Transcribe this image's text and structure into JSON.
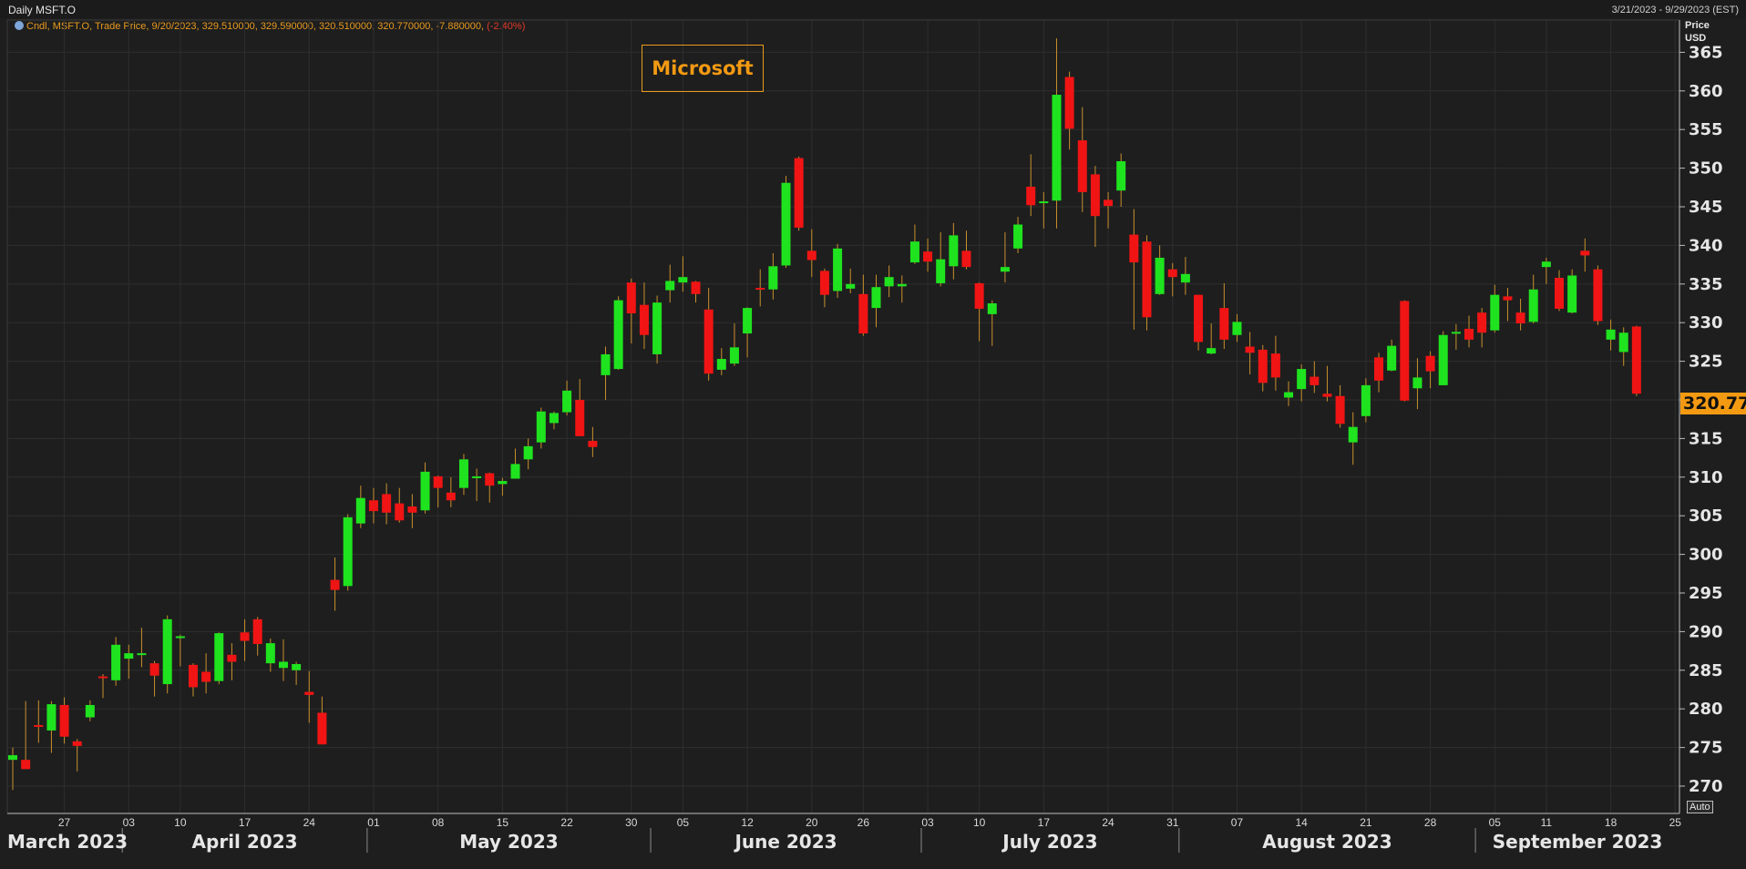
{
  "window": {
    "title": "Daily MSFT.O",
    "date_range": "3/21/2023 - 9/29/2023 (EST)"
  },
  "legend": {
    "text": "Cndl, MSFT.O, Trade Price, 9/20/2023, 329.510000, 329.590000, 320.510000, 320.770000, -7.880000,",
    "change_pct": "(-2.40%)"
  },
  "axis": {
    "price_label": "Price",
    "currency": "USD",
    "auto_label": "Auto",
    "last_price": "320.770"
  },
  "annotation": {
    "label": "Microsoft"
  },
  "colors": {
    "background": "#1e1e1e",
    "up": "#1fe31f",
    "down": "#f01414",
    "grid": "#2e2e2e",
    "wick": "#c8912c",
    "accent": "#f39a12"
  },
  "chart_data": {
    "type": "candlestick",
    "title": "Daily MSFT.O",
    "ylabel": "Price USD",
    "ylim": [
      267,
      367
    ],
    "yticks": [
      270,
      275,
      280,
      285,
      290,
      295,
      300,
      305,
      310,
      315,
      320,
      325,
      330,
      335,
      340,
      345,
      350,
      355,
      360,
      365
    ],
    "x_day_ticks": [
      "27",
      "03",
      "10",
      "17",
      "24",
      "01",
      "08",
      "15",
      "22",
      "30",
      "05",
      "12",
      "20",
      "26",
      "03",
      "10",
      "17",
      "24",
      "31",
      "07",
      "14",
      "21",
      "28",
      "05",
      "11",
      "18",
      "25"
    ],
    "x_month_labels": [
      "March 2023",
      "April 2023",
      "May 2023",
      "June 2023",
      "July 2023",
      "August 2023",
      "September 2023"
    ],
    "grid": true,
    "candles": [
      {
        "date": "2023-03-21",
        "o": 273.4,
        "h": 275.0,
        "l": 269.5,
        "c": 274.0
      },
      {
        "date": "2023-03-22",
        "o": 273.4,
        "h": 281.0,
        "l": 272.2,
        "c": 272.2
      },
      {
        "date": "2023-03-23",
        "o": 277.9,
        "h": 281.1,
        "l": 275.6,
        "c": 277.7
      },
      {
        "date": "2023-03-24",
        "o": 277.2,
        "h": 281.0,
        "l": 274.3,
        "c": 280.6
      },
      {
        "date": "2023-03-27",
        "o": 280.5,
        "h": 281.5,
        "l": 275.5,
        "c": 276.4
      },
      {
        "date": "2023-03-28",
        "o": 275.8,
        "h": 276.1,
        "l": 271.9,
        "c": 275.2
      },
      {
        "date": "2023-03-29",
        "o": 278.9,
        "h": 281.1,
        "l": 278.4,
        "c": 280.5
      },
      {
        "date": "2023-03-30",
        "o": 284.2,
        "h": 284.5,
        "l": 281.4,
        "c": 284.1
      },
      {
        "date": "2023-03-31",
        "o": 283.7,
        "h": 289.3,
        "l": 283.0,
        "c": 288.3
      },
      {
        "date": "2023-04-03",
        "o": 286.5,
        "h": 288.3,
        "l": 283.9,
        "c": 287.2
      },
      {
        "date": "2023-04-04",
        "o": 287.2,
        "h": 290.5,
        "l": 285.4,
        "c": 287.2
      },
      {
        "date": "2023-04-05",
        "o": 285.9,
        "h": 286.2,
        "l": 281.6,
        "c": 284.3
      },
      {
        "date": "2023-04-06",
        "o": 283.2,
        "h": 292.1,
        "l": 282.0,
        "c": 291.6
      },
      {
        "date": "2023-04-10",
        "o": 289.2,
        "h": 289.6,
        "l": 285.5,
        "c": 289.4
      },
      {
        "date": "2023-04-11",
        "o": 285.7,
        "h": 285.9,
        "l": 281.6,
        "c": 282.8
      },
      {
        "date": "2023-04-12",
        "o": 284.8,
        "h": 287.2,
        "l": 282.0,
        "c": 283.5
      },
      {
        "date": "2023-04-13",
        "o": 283.6,
        "h": 289.9,
        "l": 283.2,
        "c": 289.8
      },
      {
        "date": "2023-04-14",
        "o": 287.0,
        "h": 288.5,
        "l": 283.7,
        "c": 286.1
      },
      {
        "date": "2023-04-17",
        "o": 289.9,
        "h": 291.6,
        "l": 286.2,
        "c": 288.8
      },
      {
        "date": "2023-04-18",
        "o": 291.6,
        "h": 291.9,
        "l": 286.9,
        "c": 288.4
      },
      {
        "date": "2023-04-19",
        "o": 285.9,
        "h": 289.1,
        "l": 284.8,
        "c": 288.5
      },
      {
        "date": "2023-04-20",
        "o": 285.3,
        "h": 289.0,
        "l": 283.6,
        "c": 286.1
      },
      {
        "date": "2023-04-21",
        "o": 285.0,
        "h": 286.1,
        "l": 283.1,
        "c": 285.8
      },
      {
        "date": "2023-04-24",
        "o": 282.2,
        "h": 284.9,
        "l": 278.2,
        "c": 281.8
      },
      {
        "date": "2023-04-25",
        "o": 279.5,
        "h": 281.6,
        "l": 275.4,
        "c": 275.4
      },
      {
        "date": "2023-04-26",
        "o": 296.7,
        "h": 299.6,
        "l": 292.7,
        "c": 295.4
      },
      {
        "date": "2023-04-27",
        "o": 295.9,
        "h": 305.2,
        "l": 295.3,
        "c": 304.8
      },
      {
        "date": "2023-04-28",
        "o": 304.0,
        "h": 308.9,
        "l": 303.4,
        "c": 307.3
      },
      {
        "date": "2023-05-01",
        "o": 307.0,
        "h": 308.6,
        "l": 304.0,
        "c": 305.6
      },
      {
        "date": "2023-05-02",
        "o": 307.8,
        "h": 309.2,
        "l": 303.9,
        "c": 305.4
      },
      {
        "date": "2023-05-03",
        "o": 306.6,
        "h": 308.6,
        "l": 304.1,
        "c": 304.4
      },
      {
        "date": "2023-05-04",
        "o": 306.2,
        "h": 307.8,
        "l": 303.4,
        "c": 305.4
      },
      {
        "date": "2023-05-05",
        "o": 305.7,
        "h": 311.9,
        "l": 305.3,
        "c": 310.7
      },
      {
        "date": "2023-05-08",
        "o": 310.1,
        "h": 310.2,
        "l": 306.1,
        "c": 308.6
      },
      {
        "date": "2023-05-09",
        "o": 308.0,
        "h": 310.0,
        "l": 306.1,
        "c": 307.0
      },
      {
        "date": "2023-05-10",
        "o": 308.6,
        "h": 313.0,
        "l": 307.7,
        "c": 312.3
      },
      {
        "date": "2023-05-11",
        "o": 310.1,
        "h": 311.1,
        "l": 306.9,
        "c": 310.1
      },
      {
        "date": "2023-05-12",
        "o": 310.5,
        "h": 310.6,
        "l": 306.7,
        "c": 308.9
      },
      {
        "date": "2023-05-15",
        "o": 309.1,
        "h": 309.9,
        "l": 307.6,
        "c": 309.5
      },
      {
        "date": "2023-05-16",
        "o": 309.8,
        "h": 313.7,
        "l": 309.8,
        "c": 311.7
      },
      {
        "date": "2023-05-17",
        "o": 312.3,
        "h": 315.0,
        "l": 311.0,
        "c": 314.0
      },
      {
        "date": "2023-05-18",
        "o": 314.5,
        "h": 319.0,
        "l": 313.7,
        "c": 318.5
      },
      {
        "date": "2023-05-19",
        "o": 317.0,
        "h": 318.5,
        "l": 316.2,
        "c": 318.3
      },
      {
        "date": "2023-05-22",
        "o": 318.4,
        "h": 322.5,
        "l": 318.0,
        "c": 321.2
      },
      {
        "date": "2023-05-23",
        "o": 320.0,
        "h": 322.7,
        "l": 315.3,
        "c": 315.3
      },
      {
        "date": "2023-05-24",
        "o": 314.7,
        "h": 316.5,
        "l": 312.6,
        "c": 313.9
      },
      {
        "date": "2023-05-25",
        "o": 323.2,
        "h": 326.9,
        "l": 320.0,
        "c": 325.9
      },
      {
        "date": "2023-05-26",
        "o": 324.0,
        "h": 333.4,
        "l": 323.9,
        "c": 332.9
      },
      {
        "date": "2023-05-30",
        "o": 335.2,
        "h": 335.7,
        "l": 327.3,
        "c": 331.2
      },
      {
        "date": "2023-05-31",
        "o": 332.3,
        "h": 335.2,
        "l": 326.6,
        "c": 328.4
      },
      {
        "date": "2023-06-01",
        "o": 325.9,
        "h": 333.5,
        "l": 324.7,
        "c": 332.6
      },
      {
        "date": "2023-06-02",
        "o": 334.2,
        "h": 337.5,
        "l": 332.6,
        "c": 335.4
      },
      {
        "date": "2023-06-05",
        "o": 335.2,
        "h": 338.6,
        "l": 334.0,
        "c": 335.9
      },
      {
        "date": "2023-06-06",
        "o": 335.3,
        "h": 335.4,
        "l": 332.6,
        "c": 333.7
      },
      {
        "date": "2023-06-07",
        "o": 331.7,
        "h": 334.5,
        "l": 322.5,
        "c": 323.4
      },
      {
        "date": "2023-06-08",
        "o": 323.9,
        "h": 326.7,
        "l": 323.2,
        "c": 325.3
      },
      {
        "date": "2023-06-09",
        "o": 324.7,
        "h": 329.9,
        "l": 324.4,
        "c": 326.8
      },
      {
        "date": "2023-06-12",
        "o": 328.6,
        "h": 332.0,
        "l": 325.5,
        "c": 331.9
      },
      {
        "date": "2023-06-13",
        "o": 334.5,
        "h": 336.9,
        "l": 332.1,
        "c": 334.3
      },
      {
        "date": "2023-06-14",
        "o": 334.3,
        "h": 339.0,
        "l": 333.0,
        "c": 337.3
      },
      {
        "date": "2023-06-15",
        "o": 337.4,
        "h": 349.0,
        "l": 337.1,
        "c": 348.1
      },
      {
        "date": "2023-06-16",
        "o": 351.3,
        "h": 351.5,
        "l": 341.9,
        "c": 342.3
      },
      {
        "date": "2023-06-20",
        "o": 339.3,
        "h": 342.1,
        "l": 335.9,
        "c": 338.1
      },
      {
        "date": "2023-06-21",
        "o": 336.7,
        "h": 337.0,
        "l": 332.0,
        "c": 333.6
      },
      {
        "date": "2023-06-22",
        "o": 334.1,
        "h": 340.2,
        "l": 333.2,
        "c": 339.6
      },
      {
        "date": "2023-06-23",
        "o": 334.4,
        "h": 337.0,
        "l": 333.8,
        "c": 335.0
      },
      {
        "date": "2023-06-26",
        "o": 333.7,
        "h": 336.2,
        "l": 328.3,
        "c": 328.6
      },
      {
        "date": "2023-06-27",
        "o": 331.9,
        "h": 336.2,
        "l": 329.4,
        "c": 334.6
      },
      {
        "date": "2023-06-28",
        "o": 334.7,
        "h": 337.4,
        "l": 333.3,
        "c": 335.9
      },
      {
        "date": "2023-06-29",
        "o": 334.7,
        "h": 336.1,
        "l": 332.6,
        "c": 335.0
      },
      {
        "date": "2023-06-30",
        "o": 337.8,
        "h": 342.7,
        "l": 337.6,
        "c": 340.5
      },
      {
        "date": "2023-07-03",
        "o": 339.2,
        "h": 340.9,
        "l": 336.6,
        "c": 337.9
      },
      {
        "date": "2023-07-05",
        "o": 335.1,
        "h": 341.7,
        "l": 334.7,
        "c": 338.2
      },
      {
        "date": "2023-07-06",
        "o": 337.3,
        "h": 342.9,
        "l": 335.6,
        "c": 341.3
      },
      {
        "date": "2023-07-07",
        "o": 339.3,
        "h": 341.9,
        "l": 336.9,
        "c": 337.2
      },
      {
        "date": "2023-07-10",
        "o": 335.1,
        "h": 335.2,
        "l": 327.6,
        "c": 331.8
      },
      {
        "date": "2023-07-11",
        "o": 331.1,
        "h": 332.9,
        "l": 327.0,
        "c": 332.5
      },
      {
        "date": "2023-07-12",
        "o": 336.6,
        "h": 341.7,
        "l": 335.2,
        "c": 337.2
      },
      {
        "date": "2023-07-13",
        "o": 339.6,
        "h": 343.7,
        "l": 339.0,
        "c": 342.7
      },
      {
        "date": "2023-07-14",
        "o": 347.6,
        "h": 351.8,
        "l": 343.8,
        "c": 345.2
      },
      {
        "date": "2023-07-17",
        "o": 345.7,
        "h": 346.9,
        "l": 342.2,
        "c": 345.7
      },
      {
        "date": "2023-07-18",
        "o": 345.8,
        "h": 366.8,
        "l": 342.2,
        "c": 359.5
      },
      {
        "date": "2023-07-19",
        "o": 361.8,
        "h": 362.5,
        "l": 352.4,
        "c": 355.1
      },
      {
        "date": "2023-07-20",
        "o": 353.6,
        "h": 357.9,
        "l": 344.3,
        "c": 346.9
      },
      {
        "date": "2023-07-21",
        "o": 349.2,
        "h": 350.3,
        "l": 339.8,
        "c": 343.8
      },
      {
        "date": "2023-07-24",
        "o": 345.9,
        "h": 346.9,
        "l": 342.2,
        "c": 345.1
      },
      {
        "date": "2023-07-25",
        "o": 347.1,
        "h": 351.9,
        "l": 345.0,
        "c": 350.9
      },
      {
        "date": "2023-07-26",
        "o": 341.4,
        "h": 344.7,
        "l": 329.1,
        "c": 337.8
      },
      {
        "date": "2023-07-27",
        "o": 340.5,
        "h": 341.3,
        "l": 329.0,
        "c": 330.7
      },
      {
        "date": "2023-07-28",
        "o": 333.7,
        "h": 340.0,
        "l": 333.6,
        "c": 338.4
      },
      {
        "date": "2023-07-31",
        "o": 336.9,
        "h": 337.7,
        "l": 333.4,
        "c": 335.9
      },
      {
        "date": "2023-08-01",
        "o": 335.2,
        "h": 338.5,
        "l": 333.6,
        "c": 336.3
      },
      {
        "date": "2023-08-02",
        "o": 333.6,
        "h": 333.6,
        "l": 326.4,
        "c": 327.5
      },
      {
        "date": "2023-08-03",
        "o": 326.0,
        "h": 329.9,
        "l": 325.9,
        "c": 326.7
      },
      {
        "date": "2023-08-04",
        "o": 331.9,
        "h": 335.1,
        "l": 326.6,
        "c": 327.8
      },
      {
        "date": "2023-08-07",
        "o": 328.4,
        "h": 331.1,
        "l": 327.5,
        "c": 330.1
      },
      {
        "date": "2023-08-08",
        "o": 326.9,
        "h": 328.8,
        "l": 323.3,
        "c": 326.1
      },
      {
        "date": "2023-08-09",
        "o": 326.5,
        "h": 327.1,
        "l": 321.1,
        "c": 322.2
      },
      {
        "date": "2023-08-10",
        "o": 326.0,
        "h": 328.3,
        "l": 321.2,
        "c": 322.9
      },
      {
        "date": "2023-08-11",
        "o": 320.3,
        "h": 322.4,
        "l": 319.2,
        "c": 321.0
      },
      {
        "date": "2023-08-14",
        "o": 321.4,
        "h": 324.6,
        "l": 319.8,
        "c": 324.0
      },
      {
        "date": "2023-08-15",
        "o": 323.0,
        "h": 325.0,
        "l": 320.9,
        "c": 321.9
      },
      {
        "date": "2023-08-16",
        "o": 320.8,
        "h": 324.4,
        "l": 319.8,
        "c": 320.4
      },
      {
        "date": "2023-08-17",
        "o": 320.5,
        "h": 321.9,
        "l": 316.4,
        "c": 316.9
      },
      {
        "date": "2023-08-18",
        "o": 314.5,
        "h": 318.4,
        "l": 311.6,
        "c": 316.5
      },
      {
        "date": "2023-08-21",
        "o": 317.9,
        "h": 322.8,
        "l": 317.1,
        "c": 321.9
      },
      {
        "date": "2023-08-22",
        "o": 325.5,
        "h": 326.1,
        "l": 321.0,
        "c": 322.5
      },
      {
        "date": "2023-08-23",
        "o": 323.8,
        "h": 327.8,
        "l": 323.7,
        "c": 327.0
      },
      {
        "date": "2023-08-24",
        "o": 332.8,
        "h": 332.9,
        "l": 319.8,
        "c": 319.9
      },
      {
        "date": "2023-08-25",
        "o": 321.5,
        "h": 325.4,
        "l": 318.8,
        "c": 322.9
      },
      {
        "date": "2023-08-28",
        "o": 325.7,
        "h": 326.3,
        "l": 321.5,
        "c": 323.7
      },
      {
        "date": "2023-08-29",
        "o": 321.9,
        "h": 328.9,
        "l": 321.9,
        "c": 328.4
      },
      {
        "date": "2023-08-30",
        "o": 328.7,
        "h": 329.8,
        "l": 326.5,
        "c": 328.8
      },
      {
        "date": "2023-08-31",
        "o": 329.2,
        "h": 330.9,
        "l": 326.8,
        "c": 327.8
      },
      {
        "date": "2023-09-01",
        "o": 331.3,
        "h": 331.9,
        "l": 326.8,
        "c": 328.7
      },
      {
        "date": "2023-09-05",
        "o": 329.0,
        "h": 334.9,
        "l": 328.7,
        "c": 333.6
      },
      {
        "date": "2023-09-06",
        "o": 333.4,
        "h": 334.5,
        "l": 330.2,
        "c": 332.9
      },
      {
        "date": "2023-09-07",
        "o": 331.3,
        "h": 333.1,
        "l": 329.0,
        "c": 329.9
      },
      {
        "date": "2023-09-08",
        "o": 330.1,
        "h": 336.2,
        "l": 329.9,
        "c": 334.3
      },
      {
        "date": "2023-09-11",
        "o": 337.2,
        "h": 338.4,
        "l": 335.0,
        "c": 337.9
      },
      {
        "date": "2023-09-12",
        "o": 335.8,
        "h": 336.8,
        "l": 331.5,
        "c": 331.8
      },
      {
        "date": "2023-09-13",
        "o": 331.3,
        "h": 336.9,
        "l": 331.2,
        "c": 336.1
      },
      {
        "date": "2023-09-14",
        "o": 339.3,
        "h": 340.9,
        "l": 336.6,
        "c": 338.7
      },
      {
        "date": "2023-09-15",
        "o": 336.9,
        "h": 337.4,
        "l": 329.7,
        "c": 330.2
      },
      {
        "date": "2023-09-18",
        "o": 327.8,
        "h": 330.4,
        "l": 326.4,
        "c": 329.1
      },
      {
        "date": "2023-09-19",
        "o": 326.2,
        "h": 329.4,
        "l": 324.4,
        "c": 328.7
      },
      {
        "date": "2023-09-20",
        "o": 329.5,
        "h": 329.6,
        "l": 320.5,
        "c": 320.8
      }
    ]
  }
}
